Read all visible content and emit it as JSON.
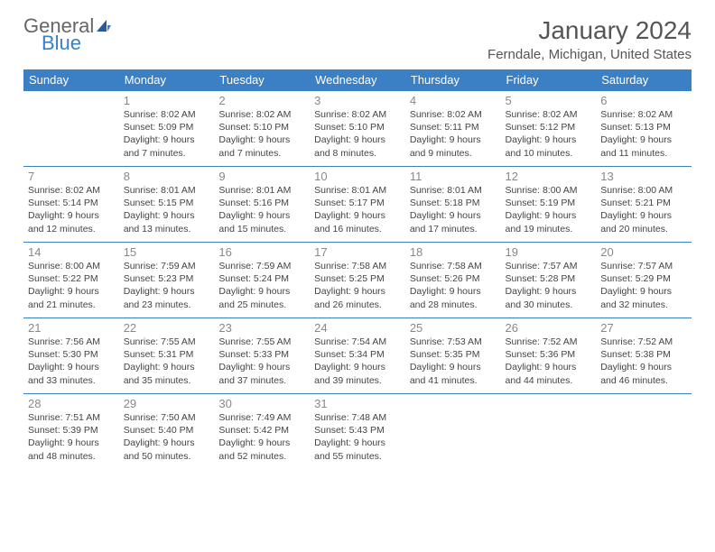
{
  "brand": {
    "word1": "General",
    "word2": "Blue"
  },
  "title": "January 2024",
  "location": "Ferndale, Michigan, United States",
  "dayHeaders": [
    "Sunday",
    "Monday",
    "Tuesday",
    "Wednesday",
    "Thursday",
    "Friday",
    "Saturday"
  ],
  "colors": {
    "header_bg": "#3b7fc4",
    "header_text": "#ffffff",
    "border": "#3b7fc4",
    "daynum": "#888888",
    "body_text": "#444444"
  },
  "weeks": [
    [
      null,
      {
        "n": "1",
        "sr": "8:02 AM",
        "ss": "5:09 PM",
        "dl": "9 hours and 7 minutes."
      },
      {
        "n": "2",
        "sr": "8:02 AM",
        "ss": "5:10 PM",
        "dl": "9 hours and 7 minutes."
      },
      {
        "n": "3",
        "sr": "8:02 AM",
        "ss": "5:10 PM",
        "dl": "9 hours and 8 minutes."
      },
      {
        "n": "4",
        "sr": "8:02 AM",
        "ss": "5:11 PM",
        "dl": "9 hours and 9 minutes."
      },
      {
        "n": "5",
        "sr": "8:02 AM",
        "ss": "5:12 PM",
        "dl": "9 hours and 10 minutes."
      },
      {
        "n": "6",
        "sr": "8:02 AM",
        "ss": "5:13 PM",
        "dl": "9 hours and 11 minutes."
      }
    ],
    [
      {
        "n": "7",
        "sr": "8:02 AM",
        "ss": "5:14 PM",
        "dl": "9 hours and 12 minutes."
      },
      {
        "n": "8",
        "sr": "8:01 AM",
        "ss": "5:15 PM",
        "dl": "9 hours and 13 minutes."
      },
      {
        "n": "9",
        "sr": "8:01 AM",
        "ss": "5:16 PM",
        "dl": "9 hours and 15 minutes."
      },
      {
        "n": "10",
        "sr": "8:01 AM",
        "ss": "5:17 PM",
        "dl": "9 hours and 16 minutes."
      },
      {
        "n": "11",
        "sr": "8:01 AM",
        "ss": "5:18 PM",
        "dl": "9 hours and 17 minutes."
      },
      {
        "n": "12",
        "sr": "8:00 AM",
        "ss": "5:19 PM",
        "dl": "9 hours and 19 minutes."
      },
      {
        "n": "13",
        "sr": "8:00 AM",
        "ss": "5:21 PM",
        "dl": "9 hours and 20 minutes."
      }
    ],
    [
      {
        "n": "14",
        "sr": "8:00 AM",
        "ss": "5:22 PM",
        "dl": "9 hours and 21 minutes."
      },
      {
        "n": "15",
        "sr": "7:59 AM",
        "ss": "5:23 PM",
        "dl": "9 hours and 23 minutes."
      },
      {
        "n": "16",
        "sr": "7:59 AM",
        "ss": "5:24 PM",
        "dl": "9 hours and 25 minutes."
      },
      {
        "n": "17",
        "sr": "7:58 AM",
        "ss": "5:25 PM",
        "dl": "9 hours and 26 minutes."
      },
      {
        "n": "18",
        "sr": "7:58 AM",
        "ss": "5:26 PM",
        "dl": "9 hours and 28 minutes."
      },
      {
        "n": "19",
        "sr": "7:57 AM",
        "ss": "5:28 PM",
        "dl": "9 hours and 30 minutes."
      },
      {
        "n": "20",
        "sr": "7:57 AM",
        "ss": "5:29 PM",
        "dl": "9 hours and 32 minutes."
      }
    ],
    [
      {
        "n": "21",
        "sr": "7:56 AM",
        "ss": "5:30 PM",
        "dl": "9 hours and 33 minutes."
      },
      {
        "n": "22",
        "sr": "7:55 AM",
        "ss": "5:31 PM",
        "dl": "9 hours and 35 minutes."
      },
      {
        "n": "23",
        "sr": "7:55 AM",
        "ss": "5:33 PM",
        "dl": "9 hours and 37 minutes."
      },
      {
        "n": "24",
        "sr": "7:54 AM",
        "ss": "5:34 PM",
        "dl": "9 hours and 39 minutes."
      },
      {
        "n": "25",
        "sr": "7:53 AM",
        "ss": "5:35 PM",
        "dl": "9 hours and 41 minutes."
      },
      {
        "n": "26",
        "sr": "7:52 AM",
        "ss": "5:36 PM",
        "dl": "9 hours and 44 minutes."
      },
      {
        "n": "27",
        "sr": "7:52 AM",
        "ss": "5:38 PM",
        "dl": "9 hours and 46 minutes."
      }
    ],
    [
      {
        "n": "28",
        "sr": "7:51 AM",
        "ss": "5:39 PM",
        "dl": "9 hours and 48 minutes."
      },
      {
        "n": "29",
        "sr": "7:50 AM",
        "ss": "5:40 PM",
        "dl": "9 hours and 50 minutes."
      },
      {
        "n": "30",
        "sr": "7:49 AM",
        "ss": "5:42 PM",
        "dl": "9 hours and 52 minutes."
      },
      {
        "n": "31",
        "sr": "7:48 AM",
        "ss": "5:43 PM",
        "dl": "9 hours and 55 minutes."
      },
      null,
      null,
      null
    ]
  ],
  "labels": {
    "sunrise": "Sunrise:",
    "sunset": "Sunset:",
    "daylight": "Daylight:"
  }
}
